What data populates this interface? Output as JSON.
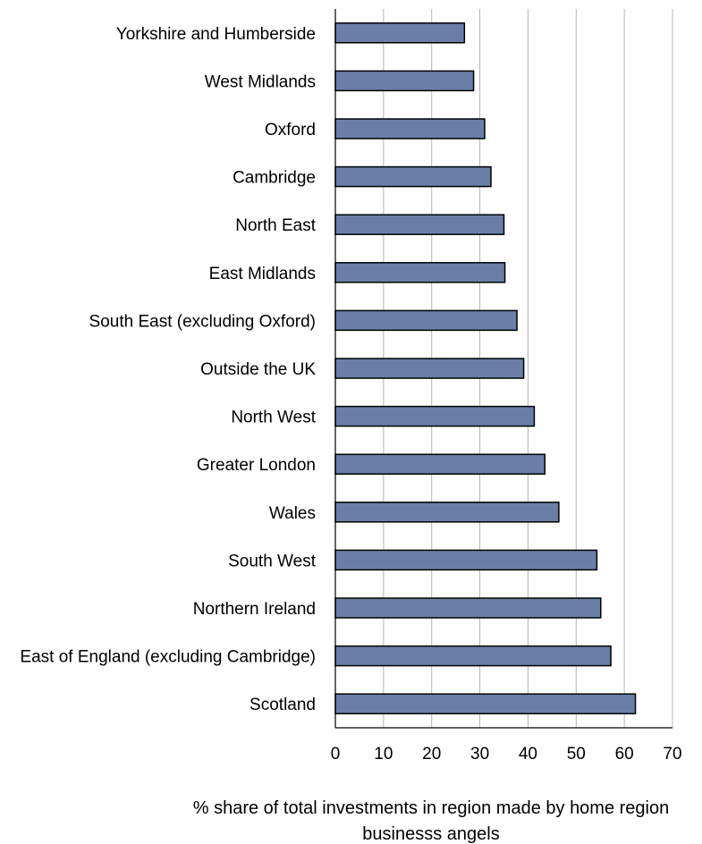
{
  "chart_data": {
    "type": "bar",
    "orientation": "horizontal",
    "categories": [
      "Yorkshire and Humberside",
      "West Midlands",
      "Oxford",
      "Cambridge",
      "North East",
      "East Midlands",
      "South East (excluding Oxford)",
      "Outside the UK",
      "North West",
      "Greater London",
      "Wales",
      "South West",
      "Northern Ireland",
      "East of England (excluding Cambridge)",
      "Scotland"
    ],
    "values": [
      26.8,
      28.7,
      31.0,
      32.3,
      35.0,
      35.2,
      37.7,
      39.1,
      41.3,
      43.5,
      46.4,
      54.3,
      55.1,
      57.2,
      62.3
    ],
    "xlim": [
      0,
      70
    ],
    "xticks": [
      "0",
      "10",
      "20",
      "30",
      "40",
      "50",
      "60",
      "70"
    ],
    "xlabel_lines": [
      "% share of total investments in region made by home region",
      "businesss angels"
    ],
    "xlabel": "% share of total investments in region made by home region businesss angels",
    "ylabel": "",
    "title": "",
    "grid": "vertical",
    "bar_color": "#6a7fa8",
    "bar_edge_color": "#000000",
    "grid_color": "#b5b5b5"
  }
}
